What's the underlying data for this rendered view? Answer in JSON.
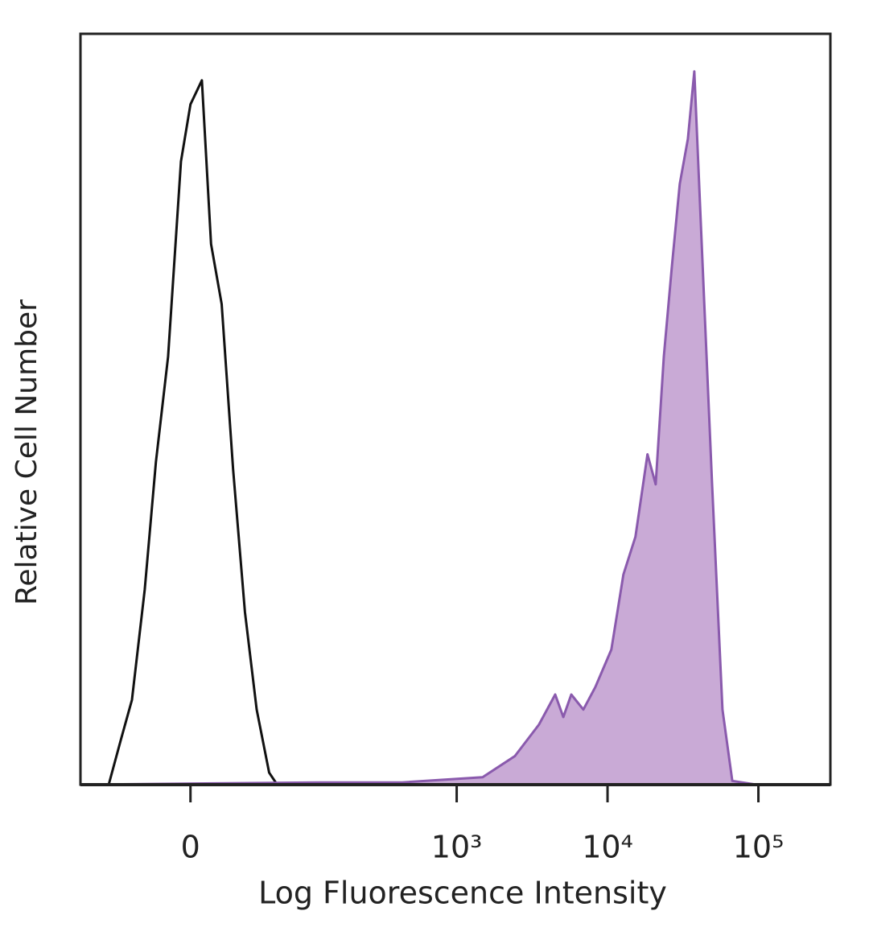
{
  "chart_data": {
    "type": "histogram-overlay",
    "x_label": "Log Fluorescence Intensity",
    "y_label": "Relative Cell Number",
    "xscale": "biexponential",
    "xlim": [
      -89,
      300000
    ],
    "ylim": [
      0,
      100
    ],
    "xticks": [
      0,
      {
        "value": 1000,
        "label": "10³"
      },
      {
        "value": 10000,
        "label": "10⁴"
      },
      {
        "value": 100000,
        "label": "10⁵"
      }
    ],
    "series": [
      {
        "color": "#111111",
        "fill": false,
        "x": [
          -89,
          -55,
          -44,
          -35,
          -26,
          -19,
          -12,
          -5,
          0,
          6,
          11,
          17,
          24,
          32,
          41,
          52,
          60,
          74,
          300000
        ],
        "values": [
          0,
          0,
          5.9,
          11.3,
          26,
          43,
          57,
          83,
          90.6,
          93.8,
          72,
          64,
          42,
          23,
          10,
          1.6,
          0,
          0,
          0
        ]
      },
      {
        "color": "#8a5aad",
        "fill": "#c9aad6",
        "x": [
          -89,
          125,
          435,
          1486,
          2430,
          3510,
          4500,
          5090,
          5750,
          6910,
          8300,
          10600,
          12750,
          15300,
          18400,
          20850,
          23600,
          26700,
          30100,
          34100,
          37600,
          43600,
          49300,
          57800,
          67100,
          96900
        ],
        "values": [
          0,
          0.3,
          0.3,
          1,
          3.8,
          8,
          12,
          9,
          12,
          10,
          13,
          18,
          28,
          33,
          44,
          40,
          57,
          69,
          80,
          86,
          95,
          65,
          40,
          10,
          0.5,
          0
        ]
      }
    ]
  }
}
